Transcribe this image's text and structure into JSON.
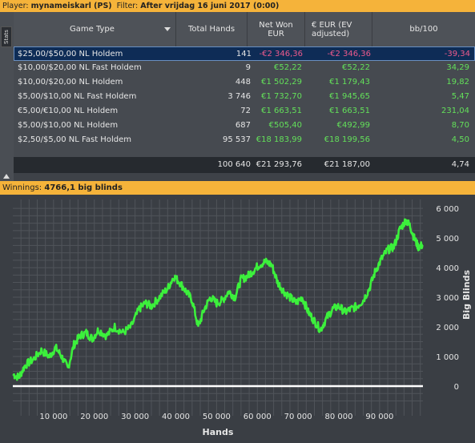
{
  "topbar": {
    "player_label": "Player:",
    "player_value": "mynameiskarl (PS)",
    "filter_label": "Filter:",
    "filter_value": "After vrijdag 16 juni 2017 (0:00)"
  },
  "side_tab": "Stats",
  "table": {
    "headers": {
      "game_type": "Game Type",
      "total_hands": "Total Hands",
      "net_won_1": "Net Won",
      "net_won_2": "EUR",
      "ev_1": "€ EUR (EV",
      "ev_2": "adjusted)",
      "bb100": "bb/100"
    },
    "rows": [
      {
        "game": "$25,00/$50,00 NL Holdem",
        "hands": "141",
        "net": "-€2 346,36",
        "ev": "-€2 346,36",
        "bb": "-39,34"
      },
      {
        "game": "$10,00/$20,00 NL Fast Holdem",
        "hands": "9",
        "net": "€52,22",
        "ev": "€52,22",
        "bb": "34,29"
      },
      {
        "game": "$10,00/$20,00 NL Holdem",
        "hands": "448",
        "net": "€1 502,29",
        "ev": "€1 179,43",
        "bb": "19,82"
      },
      {
        "game": "$5,00/$10,00 NL Fast Holdem",
        "hands": "3 746",
        "net": "€1 732,70",
        "ev": "€1 945,65",
        "bb": "5,47"
      },
      {
        "game": "€5,00/€10,00 NL Holdem",
        "hands": "72",
        "net": "€1 663,51",
        "ev": "€1 663,51",
        "bb": "231,04"
      },
      {
        "game": "$5,00/$10,00 NL Holdem",
        "hands": "687",
        "net": "€505,40",
        "ev": "€492,99",
        "bb": "8,70"
      },
      {
        "game": "$2,50/$5,00 NL Fast Holdem",
        "hands": "95 537",
        "net": "€18 183,99",
        "ev": "€18 199,56",
        "bb": "4,50"
      }
    ],
    "totals": {
      "hands": "100 640",
      "net": "€21 293,76",
      "ev": "€21 187,00",
      "bb": "4,74"
    }
  },
  "winnings": {
    "label": "Winnings:",
    "value": "4766,1 big blinds"
  },
  "colors": {
    "accent_bar": "#f5b33a",
    "line": "#3cf03c",
    "zero_line": "#ffffff",
    "negative": "#ee5a8c",
    "positive": "#63e05a"
  },
  "chart_data": {
    "type": "line",
    "title": "",
    "xlabel": "Hands",
    "ylabel": "Big Blinds",
    "xlim": [
      0,
      100640
    ],
    "ylim": [
      -1000,
      6300
    ],
    "x_ticks": [
      10000,
      20000,
      30000,
      40000,
      50000,
      60000,
      70000,
      80000,
      90000
    ],
    "x_tick_labels": [
      "10 000",
      "20 000",
      "30 000",
      "40 000",
      "50 000",
      "60 000",
      "70 000",
      "80 000",
      "90 000"
    ],
    "y_ticks": [
      0,
      1000,
      2000,
      3000,
      4000,
      5000,
      6000
    ],
    "y_tick_labels": [
      "0",
      "1 000",
      "2 000",
      "3 000",
      "4 000",
      "5 000",
      "6 000"
    ],
    "grid": true,
    "series": [
      {
        "x": [
          0,
          1500,
          3000,
          5000,
          7000,
          9000,
          10500,
          12000,
          13500,
          15000,
          16500,
          18000,
          19500,
          21000,
          23000,
          25000,
          27000,
          29000,
          31000,
          32500,
          34000,
          36000,
          38000,
          39500,
          41000,
          42500,
          44000,
          45500,
          47000,
          48500,
          50000,
          51500,
          53000,
          54500,
          56000,
          57500,
          59000,
          60500,
          62000,
          63500,
          65000,
          66500,
          68000,
          69500,
          71000,
          72500,
          74000,
          75500,
          77000,
          78500,
          80000,
          81500,
          83000,
          84500,
          86000,
          87500,
          89000,
          90500,
          92000,
          93500,
          95000,
          96500,
          97500,
          98500,
          99500,
          100640
        ],
        "values": [
          400,
          300,
          700,
          900,
          1200,
          1000,
          1300,
          1000,
          600,
          1400,
          1700,
          1800,
          1600,
          1900,
          1700,
          2000,
          1800,
          2000,
          2600,
          2800,
          2700,
          3000,
          3300,
          3700,
          3500,
          3200,
          2900,
          2000,
          2600,
          3000,
          2800,
          2900,
          3200,
          3000,
          3600,
          3700,
          3900,
          4100,
          4200,
          4100,
          3500,
          3200,
          3000,
          2800,
          3000,
          2500,
          2200,
          1900,
          2300,
          2600,
          2700,
          2500,
          2600,
          2700,
          2900,
          3300,
          3900,
          4300,
          4600,
          4700,
          5300,
          5600,
          5400,
          5000,
          4700,
          4766
        ]
      }
    ]
  }
}
